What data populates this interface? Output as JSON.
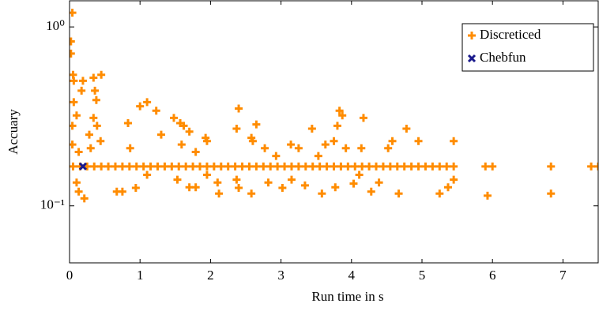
{
  "chart_data": {
    "type": "scatter",
    "xlabel": "Run time in s",
    "ylabel": "Accuary",
    "xlim": [
      0,
      7.5
    ],
    "ylim": [
      0.048,
      1.4
    ],
    "ylog": true,
    "xticks": [
      0,
      1,
      2,
      3,
      4,
      5,
      6,
      7
    ],
    "yticks": [
      {
        "value": 1,
        "label": "10⁰"
      },
      {
        "value": 0.1,
        "label": "10⁻¹"
      }
    ],
    "legend": "top right",
    "series": [
      {
        "name": "Discreticed",
        "color": "#ff8c00",
        "marker": "plus",
        "x": [
          0.05,
          0.15,
          0.25,
          0.35,
          0.45,
          0.55,
          0.65,
          0.75,
          0.85,
          0.95,
          1.05,
          1.15,
          1.25,
          1.35,
          1.45,
          1.55,
          1.65,
          1.75,
          1.85,
          1.95,
          2.05,
          2.15,
          2.25,
          2.35,
          2.45,
          2.55,
          2.65,
          2.75,
          2.85,
          2.95,
          3.05,
          3.15,
          3.25,
          3.35,
          3.45,
          3.55,
          3.65,
          3.75,
          3.85,
          3.95,
          4.05,
          4.15,
          4.25,
          4.35,
          4.45,
          4.55,
          4.65,
          4.75,
          4.85,
          4.95,
          5.05,
          5.15,
          5.25,
          5.35,
          5.45,
          5.9,
          6.0,
          6.83,
          7.4,
          7.5,
          0.04,
          0.02,
          0.02,
          0.05,
          0.06,
          0.19,
          0.17,
          0.34,
          0.45,
          0.36,
          0.38,
          0.06,
          0.1,
          0.34,
          0.39,
          0.04,
          0.28,
          0.44,
          0.04,
          0.13,
          0.3,
          0.13,
          0.21,
          0.1,
          0.83,
          1.0,
          1.1,
          1.23,
          1.3,
          0.86,
          0.67,
          0.75,
          0.94,
          1.1,
          1.48,
          1.57,
          1.62,
          1.7,
          1.59,
          1.79,
          1.95,
          1.93,
          1.7,
          1.79,
          1.53,
          1.95,
          2.1,
          2.12,
          2.4,
          2.37,
          2.65,
          2.58,
          2.6,
          2.77,
          2.93,
          2.37,
          2.4,
          2.58,
          2.82,
          3.02,
          3.14,
          3.25,
          3.15,
          3.34,
          3.44,
          3.53,
          3.58,
          3.63,
          3.83,
          3.87,
          3.8,
          3.75,
          3.92,
          3.77,
          4.03,
          4.14,
          4.17,
          4.11,
          4.28,
          4.39,
          4.52,
          4.58,
          4.67,
          4.78,
          4.95,
          5.25,
          5.37,
          5.45,
          5.45,
          5.93,
          6.83
        ],
        "values": [
          0.166,
          0.166,
          0.166,
          0.166,
          0.166,
          0.166,
          0.166,
          0.166,
          0.166,
          0.166,
          0.166,
          0.166,
          0.166,
          0.166,
          0.166,
          0.166,
          0.166,
          0.166,
          0.166,
          0.166,
          0.166,
          0.166,
          0.166,
          0.166,
          0.166,
          0.166,
          0.166,
          0.166,
          0.166,
          0.166,
          0.166,
          0.166,
          0.166,
          0.166,
          0.166,
          0.166,
          0.166,
          0.166,
          0.166,
          0.166,
          0.166,
          0.166,
          0.166,
          0.166,
          0.166,
          0.166,
          0.166,
          0.166,
          0.166,
          0.166,
          0.166,
          0.166,
          0.166,
          0.166,
          0.166,
          0.166,
          0.166,
          0.166,
          0.166,
          0.166,
          1.2,
          0.83,
          0.71,
          0.54,
          0.5,
          0.5,
          0.44,
          0.52,
          0.54,
          0.44,
          0.39,
          0.38,
          0.32,
          0.31,
          0.28,
          0.28,
          0.25,
          0.23,
          0.22,
          0.2,
          0.21,
          0.12,
          0.11,
          0.135,
          0.29,
          0.36,
          0.38,
          0.34,
          0.25,
          0.21,
          0.12,
          0.12,
          0.126,
          0.149,
          0.31,
          0.29,
          0.28,
          0.26,
          0.22,
          0.2,
          0.23,
          0.24,
          0.127,
          0.127,
          0.14,
          0.149,
          0.135,
          0.117,
          0.35,
          0.27,
          0.285,
          0.24,
          0.23,
          0.21,
          0.19,
          0.14,
          0.126,
          0.117,
          0.135,
          0.126,
          0.22,
          0.21,
          0.14,
          0.13,
          0.27,
          0.19,
          0.117,
          0.22,
          0.34,
          0.32,
          0.28,
          0.23,
          0.21,
          0.127,
          0.133,
          0.21,
          0.31,
          0.149,
          0.12,
          0.135,
          0.21,
          0.23,
          0.117,
          0.27,
          0.23,
          0.117,
          0.127,
          0.23,
          0.14,
          0.114,
          0.117
        ]
      },
      {
        "name": "Chebfun",
        "color": "#1a1a8c",
        "marker": "x",
        "x": [
          0.19
        ],
        "values": [
          0.166
        ]
      }
    ]
  }
}
